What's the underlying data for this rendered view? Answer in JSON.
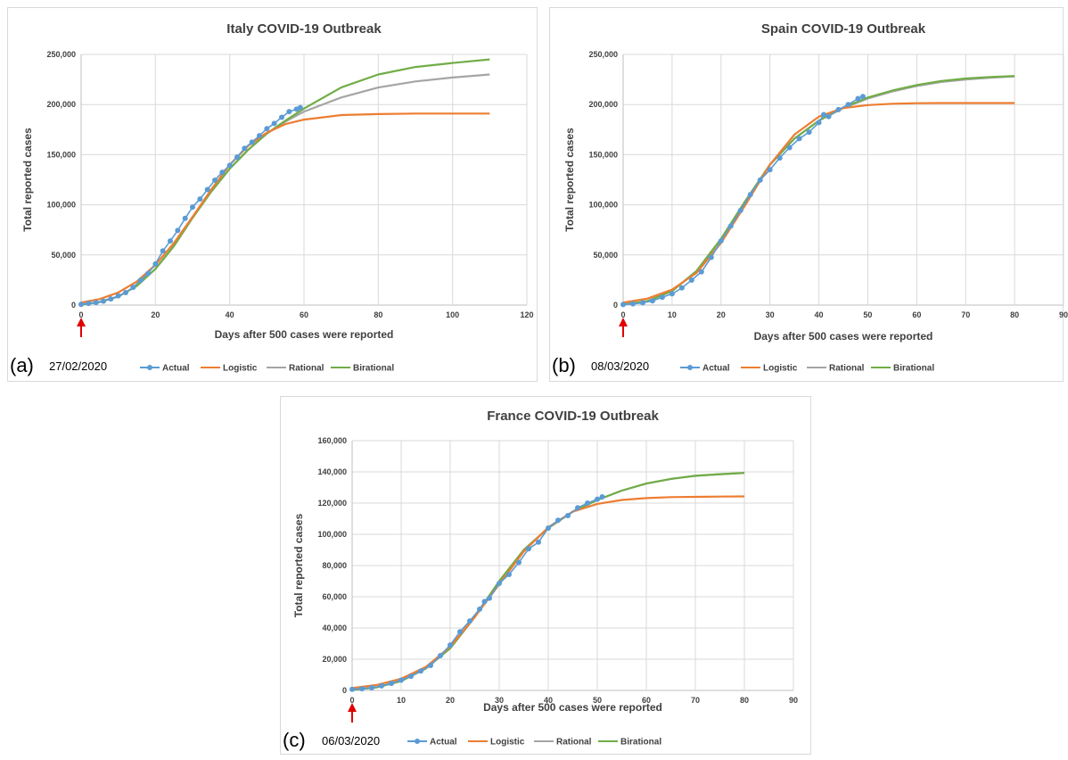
{
  "legend_labels": {
    "actual": "Actual",
    "logistic": "Logistic",
    "rational": "Rational",
    "birational": "Birational"
  },
  "colors": {
    "actual": "#5b9bd5",
    "logistic": "#ed7d31",
    "rational": "#a5a5a5",
    "birational": "#70ad47",
    "arrow": "#e00000"
  },
  "chart_data": [
    {
      "type": "line",
      "panel_label": "(a)",
      "date": "27/02/2020",
      "title": "Italy COVID-19 Outbreak",
      "xlabel": "Days after 500 cases were reported",
      "ylabel": "Total reported cases",
      "xlim": [
        0,
        120
      ],
      "ylim": [
        0,
        250000
      ],
      "xticks": [
        0,
        20,
        40,
        60,
        80,
        100,
        120
      ],
      "yticks": [
        0,
        50000,
        100000,
        150000,
        200000,
        250000
      ],
      "ytick_labels": [
        "0",
        "50,000",
        "100,000",
        "150,000",
        "200,000",
        "250,000"
      ],
      "grid": true,
      "legend_position": "bottom",
      "series": [
        {
          "name": "Actual",
          "key": "actual",
          "x": [
            0,
            2,
            4,
            6,
            8,
            10,
            12,
            14,
            16,
            18,
            20,
            22,
            24,
            26,
            28,
            30,
            32,
            34,
            36,
            38,
            40,
            42,
            44,
            46,
            48,
            50,
            52,
            54,
            56,
            58,
            59
          ],
          "y": [
            650,
            1700,
            2500,
            3900,
            6100,
            9200,
            12500,
            17700,
            24800,
            31500,
            41000,
            54000,
            63900,
            74400,
            86500,
            97700,
            105800,
            115200,
            124600,
            132500,
            139400,
            147600,
            156400,
            162500,
            168900,
            175900,
            181200,
            187300,
            192900,
            195400,
            197000
          ]
        },
        {
          "name": "Logistic",
          "key": "logistic",
          "x": [
            0,
            5,
            10,
            15,
            20,
            25,
            30,
            35,
            40,
            45,
            50,
            55,
            60,
            70,
            80,
            90,
            100,
            110
          ],
          "y": [
            2500,
            6000,
            12500,
            23500,
            40000,
            62000,
            88000,
            115000,
            140000,
            159000,
            172000,
            180500,
            185000,
            189500,
            190500,
            191000,
            191000,
            191000
          ]
        },
        {
          "name": "Rational",
          "key": "rational",
          "x": [
            0,
            5,
            10,
            15,
            20,
            25,
            30,
            35,
            40,
            45,
            50,
            55,
            60,
            70,
            80,
            90,
            100,
            110
          ],
          "y": [
            500,
            3000,
            8500,
            19000,
            36000,
            59000,
            87000,
            113000,
            136000,
            155000,
            171000,
            183000,
            193000,
            207000,
            217000,
            223000,
            227000,
            230000
          ]
        },
        {
          "name": "Birational",
          "key": "birational",
          "x": [
            0,
            5,
            10,
            15,
            20,
            25,
            30,
            35,
            40,
            45,
            50,
            55,
            60,
            70,
            80,
            90,
            100,
            110
          ],
          "y": [
            500,
            3000,
            8500,
            19000,
            36000,
            59000,
            87000,
            113000,
            136000,
            155000,
            171000,
            184000,
            196000,
            217000,
            230000,
            237500,
            241500,
            245000
          ]
        }
      ]
    },
    {
      "type": "line",
      "panel_label": "(b)",
      "date": "08/03/2020",
      "title": "Spain COVID-19 Outbreak",
      "xlabel": "Days after 500 cases were reported",
      "ylabel": "Total reported cases",
      "xlim": [
        0,
        90
      ],
      "ylim": [
        0,
        250000
      ],
      "xticks": [
        0,
        10,
        20,
        30,
        40,
        50,
        60,
        70,
        80,
        90
      ],
      "yticks": [
        0,
        50000,
        100000,
        150000,
        200000,
        250000
      ],
      "ytick_labels": [
        "0",
        "50,000",
        "100,000",
        "150,000",
        "200,000",
        "250,000"
      ],
      "grid": true,
      "legend_position": "bottom",
      "series": [
        {
          "name": "Actual",
          "key": "actual",
          "x": [
            0,
            2,
            4,
            6,
            8,
            10,
            12,
            14,
            16,
            18,
            20,
            22,
            24,
            26,
            28,
            30,
            32,
            34,
            36,
            38,
            40,
            41,
            42,
            44,
            46,
            48,
            49
          ],
          "y": [
            600,
            1200,
            2300,
            4200,
            7800,
            11200,
            17100,
            24900,
            33100,
            47600,
            64000,
            78800,
            94400,
            110200,
            124700,
            135000,
            146700,
            157000,
            166000,
            172500,
            182000,
            190000,
            188000,
            195000,
            200000,
            206000,
            208000
          ]
        },
        {
          "name": "Logistic",
          "key": "logistic",
          "x": [
            0,
            5,
            10,
            15,
            20,
            25,
            30,
            35,
            40,
            45,
            50,
            55,
            60,
            65,
            70,
            75,
            80
          ],
          "y": [
            2500,
            6500,
            15500,
            32000,
            62000,
            100000,
            140000,
            170000,
            188000,
            196500,
            199500,
            200800,
            201300,
            201500,
            201500,
            201500,
            201500
          ]
        },
        {
          "name": "Rational",
          "key": "rational",
          "x": [
            0,
            5,
            10,
            15,
            20,
            25,
            30,
            35,
            40,
            45,
            50,
            55,
            60,
            65,
            70,
            75,
            80
          ],
          "y": [
            500,
            4000,
            14000,
            34000,
            66000,
            104000,
            140000,
            166000,
            184000,
            196500,
            206000,
            213000,
            218500,
            222500,
            225000,
            226800,
            228000
          ]
        },
        {
          "name": "Birational",
          "key": "birational",
          "x": [
            0,
            5,
            10,
            15,
            20,
            25,
            30,
            35,
            40,
            45,
            50,
            55,
            60,
            65,
            70,
            75,
            80
          ],
          "y": [
            500,
            4000,
            14000,
            34000,
            66000,
            104000,
            140000,
            166000,
            184000,
            197000,
            207000,
            214000,
            219500,
            223500,
            226000,
            227500,
            228500
          ]
        }
      ]
    },
    {
      "type": "line",
      "panel_label": "(c)",
      "date": "06/03/2020",
      "title": "France COVID-19 Outbreak",
      "xlabel": "Days after 500 cases were reported",
      "ylabel": "Total reported cases",
      "xlim": [
        0,
        90
      ],
      "ylim": [
        0,
        160000
      ],
      "xticks": [
        0,
        10,
        20,
        30,
        40,
        50,
        60,
        70,
        80,
        90
      ],
      "yticks": [
        0,
        20000,
        40000,
        60000,
        80000,
        100000,
        120000,
        140000,
        160000
      ],
      "ytick_labels": [
        "0",
        "20,000",
        "40,000",
        "60,000",
        "80,000",
        "100,000",
        "120,000",
        "140,000",
        "160,000"
      ],
      "grid": true,
      "legend_position": "bottom",
      "series": [
        {
          "name": "Actual",
          "key": "actual",
          "x": [
            0,
            2,
            4,
            6,
            8,
            10,
            12,
            14,
            16,
            18,
            20,
            22,
            24,
            26,
            27,
            28,
            30,
            32,
            34,
            36,
            38,
            40,
            42,
            44,
            46,
            48,
            50,
            51
          ],
          "y": [
            700,
            1100,
            1700,
            2900,
            4500,
            6600,
            9100,
            12400,
            16000,
            22300,
            29100,
            37600,
            44500,
            52100,
            56900,
            59100,
            68600,
            74300,
            82000,
            90700,
            95000,
            104000,
            109000,
            112000,
            117000,
            120000,
            122500,
            124000
          ]
        },
        {
          "name": "Logistic",
          "key": "logistic",
          "x": [
            0,
            5,
            10,
            15,
            20,
            25,
            30,
            35,
            40,
            45,
            50,
            55,
            60,
            65,
            70,
            75,
            80
          ],
          "y": [
            1500,
            3500,
            7500,
            15000,
            28000,
            47000,
            68000,
            89000,
            104500,
            114500,
            119500,
            122000,
            123200,
            123800,
            124000,
            124200,
            124300
          ]
        },
        {
          "name": "Rational",
          "key": "rational",
          "x": [
            0,
            5,
            10,
            15,
            20,
            25,
            30,
            35,
            40,
            45,
            50,
            55,
            60,
            65,
            70,
            75,
            80
          ],
          "y": [
            300,
            2000,
            6000,
            14000,
            27000,
            47000,
            70000,
            90000,
            104000,
            114500,
            122000,
            128000,
            132500,
            135500,
            137500,
            138500,
            139300
          ]
        },
        {
          "name": "Birational",
          "key": "birational",
          "x": [
            0,
            5,
            10,
            15,
            20,
            25,
            30,
            35,
            40,
            45,
            50,
            55,
            60,
            65,
            70,
            75,
            80
          ],
          "y": [
            300,
            2000,
            6000,
            14000,
            27000,
            47000,
            70000,
            90000,
            104000,
            114500,
            122000,
            128000,
            132500,
            135500,
            137500,
            138500,
            139300
          ]
        }
      ]
    }
  ]
}
